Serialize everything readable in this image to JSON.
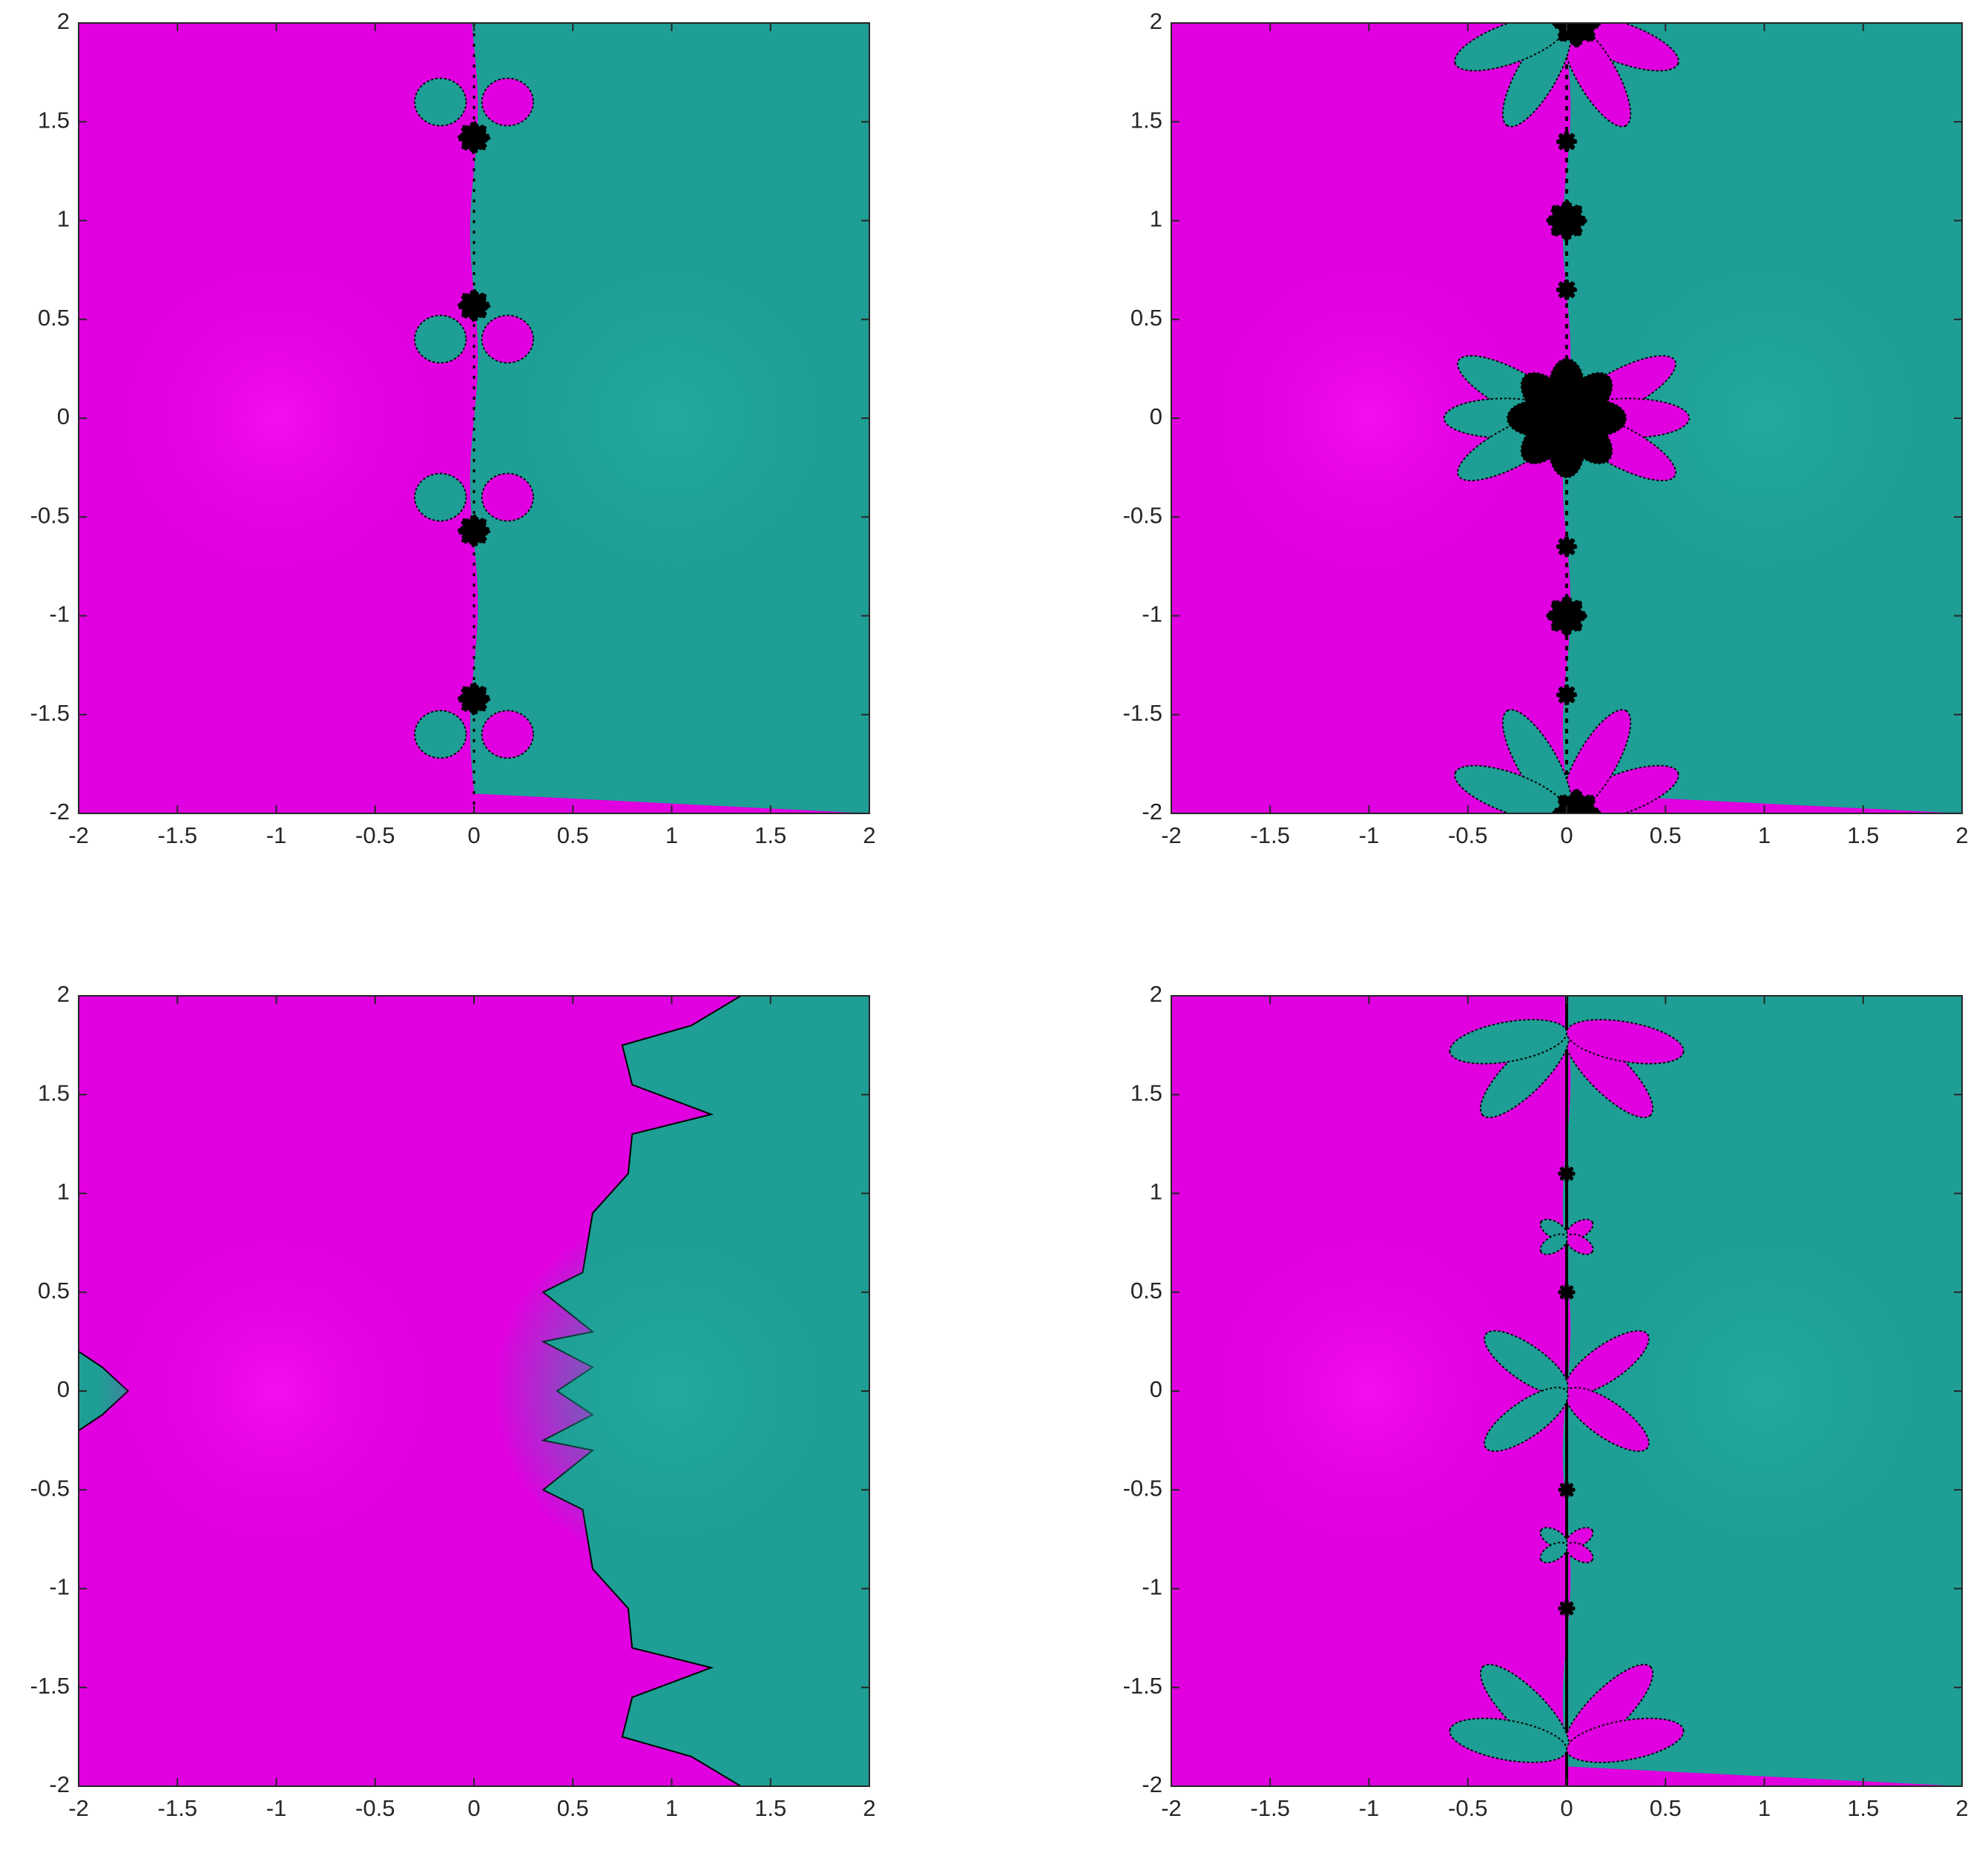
{
  "chart_data": [
    {
      "type": "basin",
      "xlim": [
        -2,
        2
      ],
      "ylim": [
        -2,
        2
      ],
      "xticks": [
        -2,
        -1.5,
        -1,
        -0.5,
        0,
        0.5,
        1,
        1.5,
        2
      ],
      "yticks": [
        -2,
        -1.5,
        -1,
        -0.5,
        0,
        0.5,
        1,
        1.5,
        2
      ]
    },
    {
      "type": "basin",
      "xlim": [
        -2,
        2
      ],
      "ylim": [
        -2,
        2
      ],
      "xticks": [
        -2,
        -1.5,
        -1,
        -0.5,
        0,
        0.5,
        1,
        1.5,
        2
      ],
      "yticks": [
        -2,
        -1.5,
        -1,
        -0.5,
        0,
        0.5,
        1,
        1.5,
        2
      ]
    },
    {
      "type": "basin",
      "xlim": [
        -2,
        2
      ],
      "ylim": [
        -2,
        2
      ],
      "xticks": [
        -2,
        -1.5,
        -1,
        -0.5,
        0,
        0.5,
        1,
        1.5,
        2
      ],
      "yticks": [
        -2,
        -1.5,
        -1,
        -0.5,
        0,
        0.5,
        1,
        1.5,
        2
      ]
    },
    {
      "type": "basin",
      "xlim": [
        -2,
        2
      ],
      "ylim": [
        -2,
        2
      ],
      "xticks": [
        -2,
        -1.5,
        -1,
        -0.5,
        0,
        0.5,
        1,
        1.5,
        2
      ],
      "yticks": [
        -2,
        -1.5,
        -1,
        -0.5,
        0,
        0.5,
        1,
        1.5,
        2
      ]
    }
  ]
}
